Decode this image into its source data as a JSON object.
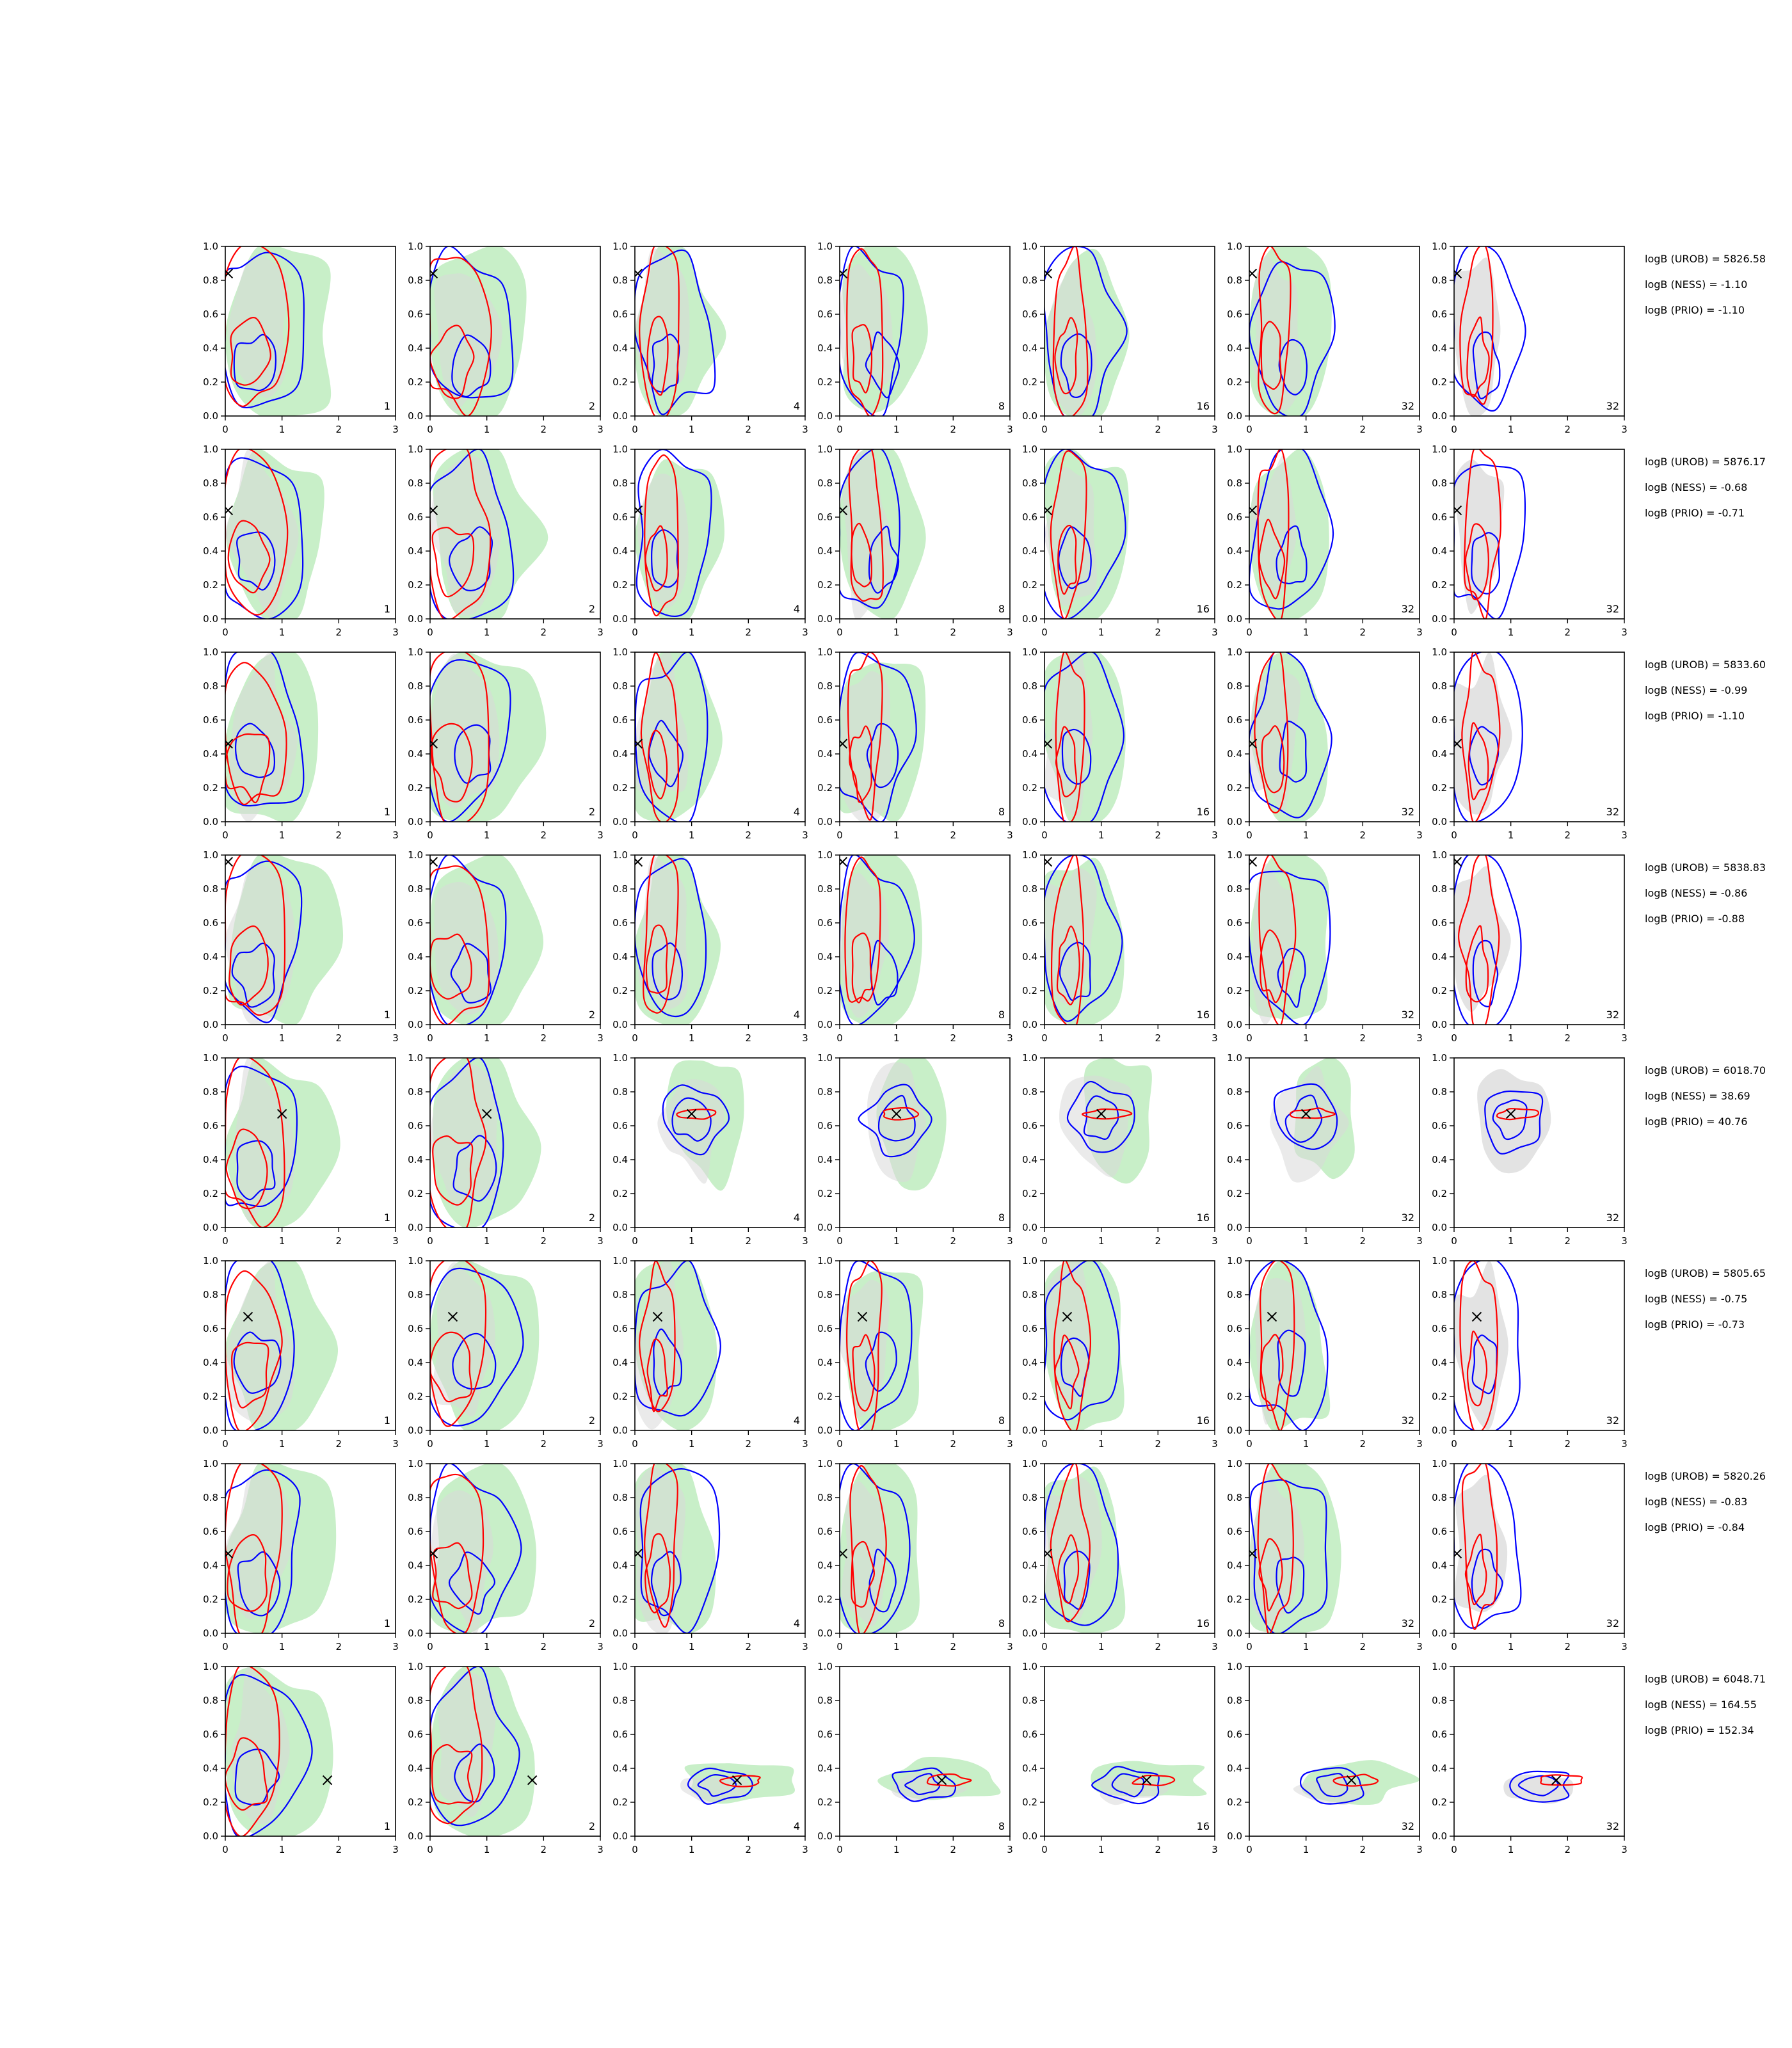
{
  "chart_data": {
    "type": "contour_grid",
    "xlim": [
      0,
      3
    ],
    "ylim": [
      0,
      1
    ],
    "x_ticks": [
      "0",
      "1",
      "2",
      "3"
    ],
    "y_ticks": [
      "0.0",
      "0.2",
      "0.4",
      "0.6",
      "0.8",
      "1.0"
    ],
    "column_labels": [
      "1",
      "2",
      "4",
      "8",
      "16",
      "32",
      "32"
    ],
    "colors": {
      "green_fill": "#c8efc8",
      "gray_fill": "#d9d9d9",
      "blue_line": "#0000ff",
      "red_line": "#ff0000",
      "marker": "#000000"
    },
    "rows": [
      {
        "truth": [
          0.05,
          0.84
        ],
        "stats": [
          "logB (UROB) = 5826.58",
          "logB (NESS) = -1.10",
          "logB (PRIO) = -1.10"
        ]
      },
      {
        "truth": [
          0.05,
          0.64
        ],
        "stats": [
          "logB (UROB) = 5876.17",
          "logB (NESS) = -0.68",
          "logB (PRIO) = -0.71"
        ]
      },
      {
        "truth": [
          0.05,
          0.46
        ],
        "stats": [
          "logB (UROB) = 5833.60",
          "logB (NESS) = -0.99",
          "logB (PRIO) = -1.10"
        ]
      },
      {
        "truth": [
          0.05,
          0.96
        ],
        "stats": [
          "logB (UROB) = 5838.83",
          "logB (NESS) = -0.86",
          "logB (PRIO) = -0.88"
        ]
      },
      {
        "truth": [
          1.0,
          0.67
        ],
        "stats": [
          "logB (UROB) = 6018.70",
          "logB (NESS) = 38.69",
          "logB (PRIO) = 40.76"
        ]
      },
      {
        "truth": [
          0.4,
          0.67
        ],
        "stats": [
          "logB (UROB) = 5805.65",
          "logB (NESS) = -0.75",
          "logB (PRIO) = -0.73"
        ]
      },
      {
        "truth": [
          0.05,
          0.47
        ],
        "stats": [
          "logB (UROB) = 5820.26",
          "logB (NESS) = -0.83",
          "logB (PRIO) = -0.84"
        ]
      },
      {
        "truth": [
          1.8,
          0.33
        ],
        "stats": [
          "logB (UROB) = 6048.71",
          "logB (NESS) = 164.55",
          "logB (PRIO) = 152.34"
        ]
      }
    ]
  }
}
